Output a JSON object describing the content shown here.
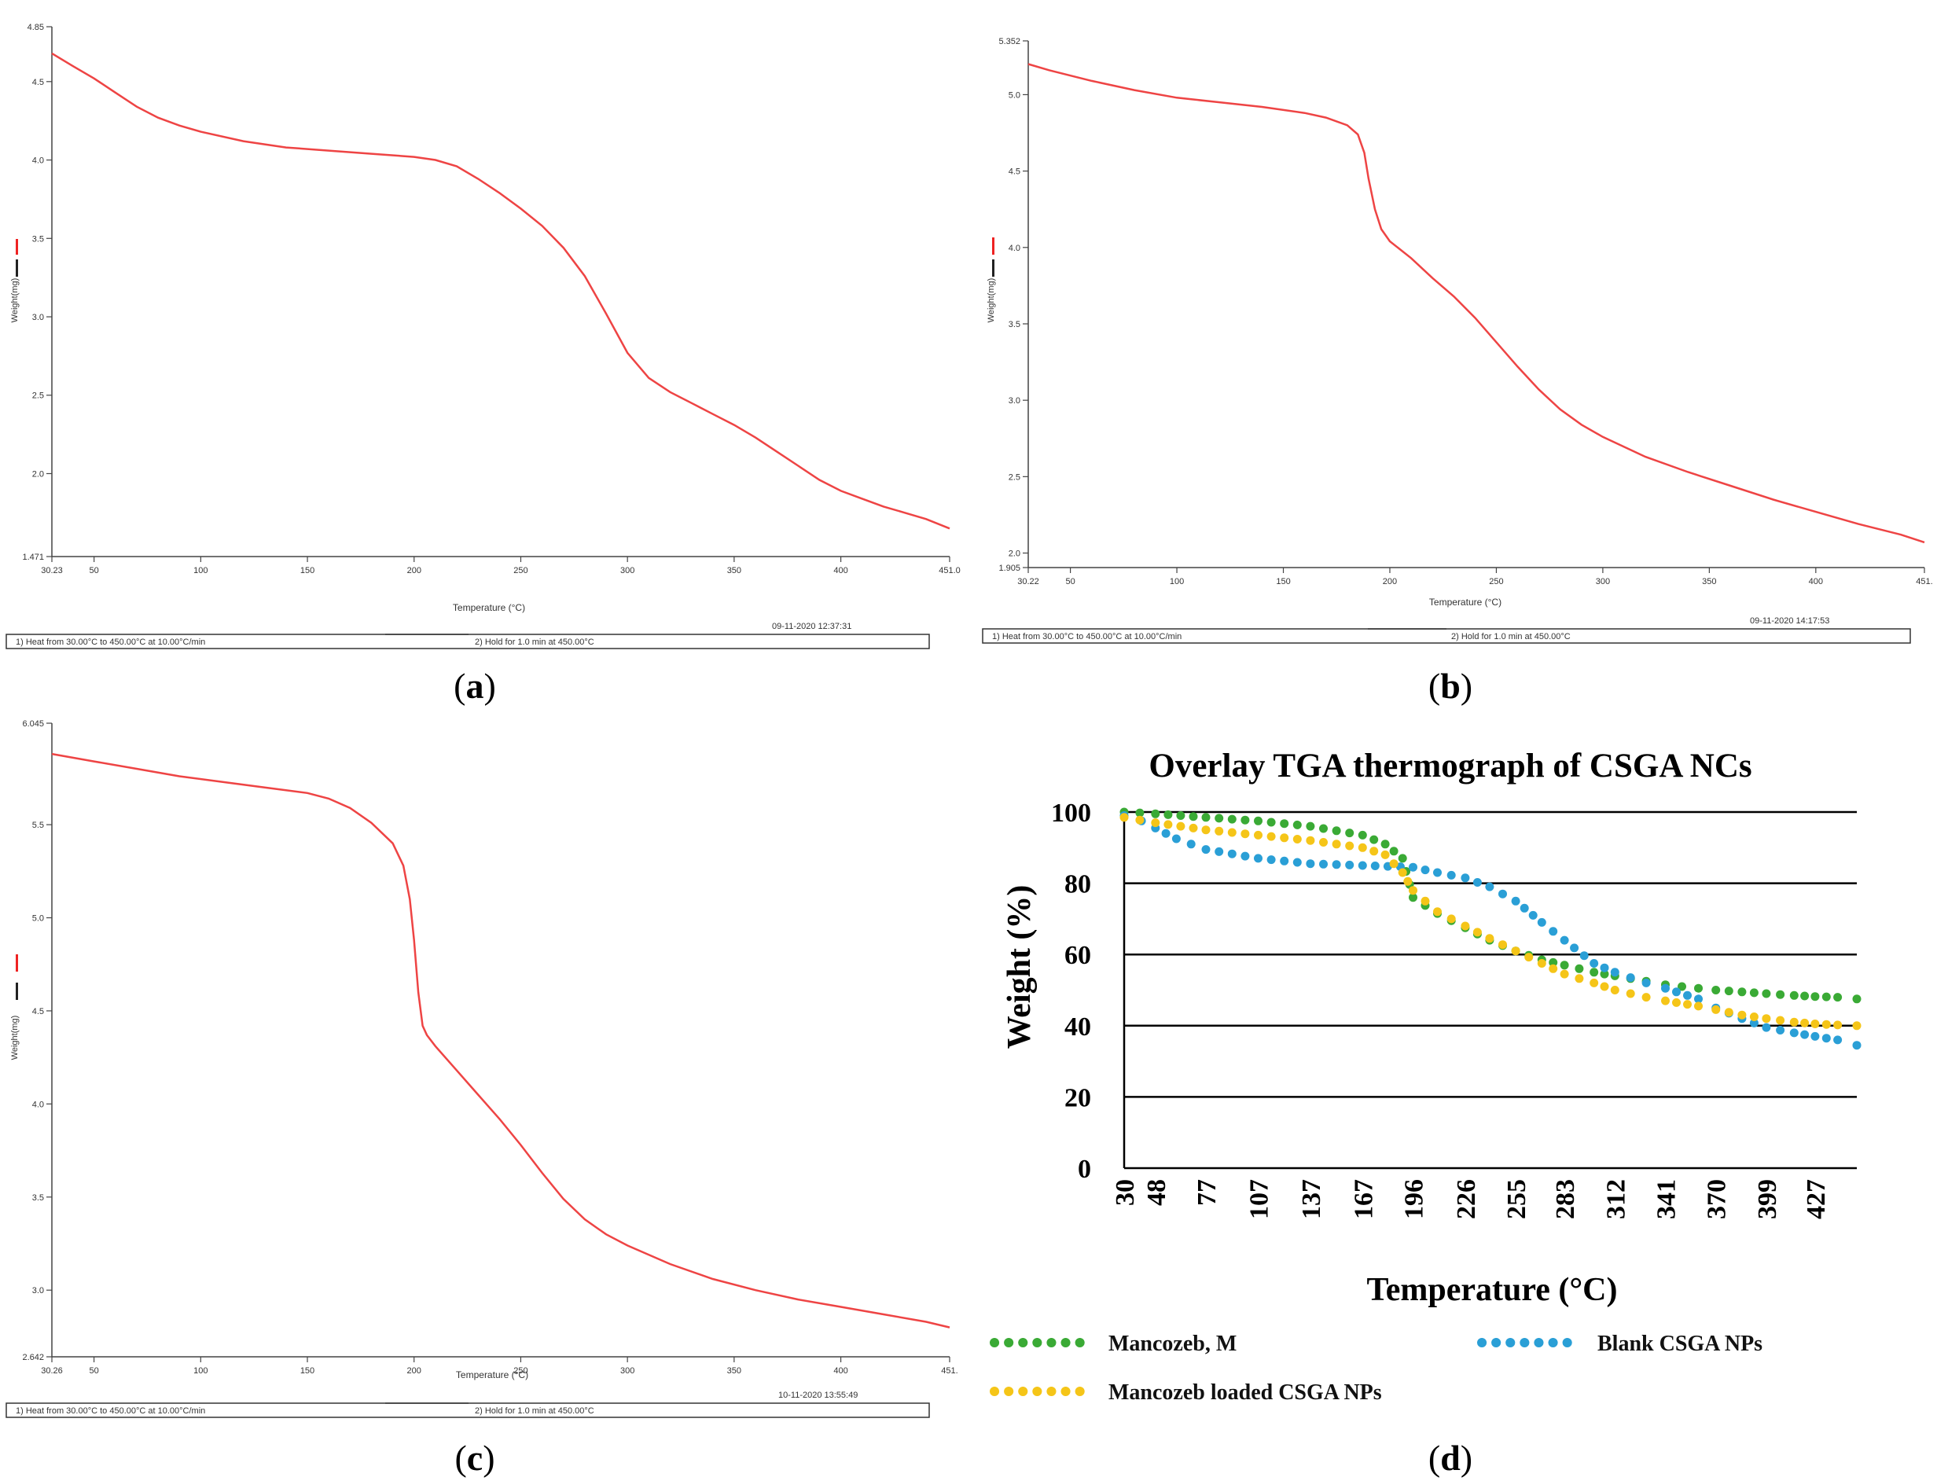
{
  "figure": {
    "captions": [
      "a",
      "b",
      "c",
      "d"
    ]
  },
  "chart_data": [
    {
      "type": "line",
      "panel": "a",
      "ylabel": "Weight(mg)",
      "xlabel": "Temperature (°C)",
      "xlim": [
        30.23,
        451.0
      ],
      "ylim": [
        1.471,
        4.85
      ],
      "x_ticks": [
        50,
        100,
        150,
        200,
        250,
        300,
        350,
        400
      ],
      "x_tick_labels": [
        "30.23",
        "50",
        "100",
        "150",
        "200",
        "250",
        "300",
        "350",
        "400",
        "451.0"
      ],
      "y_ticks": [
        2.0,
        2.5,
        3.0,
        3.5,
        4.0,
        4.5
      ],
      "y_tick_labels": [
        "1.471",
        "2.0",
        "2.5",
        "3.0",
        "3.5",
        "4.0",
        "4.5",
        "4.85"
      ],
      "series": [
        {
          "name": "Weight",
          "color": "#ee4444",
          "x": [
            30.23,
            40,
            50,
            60,
            70,
            80,
            90,
            100,
            120,
            140,
            160,
            180,
            200,
            210,
            220,
            230,
            240,
            250,
            260,
            270,
            280,
            290,
            300,
            310,
            320,
            330,
            340,
            350,
            360,
            370,
            380,
            390,
            400,
            410,
            420,
            430,
            440,
            451
          ],
          "y": [
            4.68,
            4.6,
            4.52,
            4.43,
            4.34,
            4.27,
            4.22,
            4.18,
            4.12,
            4.08,
            4.06,
            4.04,
            4.02,
            4.0,
            3.96,
            3.88,
            3.79,
            3.69,
            3.58,
            3.44,
            3.26,
            3.02,
            2.77,
            2.61,
            2.52,
            2.45,
            2.38,
            2.31,
            2.23,
            2.14,
            2.05,
            1.96,
            1.89,
            1.84,
            1.79,
            1.75,
            1.71,
            1.65
          ]
        }
      ],
      "footer": {
        "timestamp": "09-11-2020 12:37:31",
        "step1": "1)   Heat from 30.00°C to 450.00°C at 10.00°C/min",
        "step2": "2)    Hold for 1.0 min at 450.00°C"
      }
    },
    {
      "type": "line",
      "panel": "b",
      "ylabel": "Weight(mg)",
      "xlabel": "Temperature (°C)",
      "xlim": [
        30.22,
        451.0
      ],
      "ylim": [
        1.905,
        5.352
      ],
      "x_ticks": [
        50,
        100,
        150,
        200,
        250,
        300,
        350,
        400
      ],
      "x_tick_labels": [
        "30.22",
        "50",
        "100",
        "150",
        "200",
        "250",
        "300",
        "350",
        "400",
        "451."
      ],
      "y_ticks": [
        2.0,
        2.5,
        3.0,
        3.5,
        4.0,
        4.5,
        5.0
      ],
      "y_tick_labels": [
        "1.905",
        "2.0",
        "2.5",
        "3.0",
        "3.5",
        "4.0",
        "4.5",
        "5.0",
        "5.352"
      ],
      "series": [
        {
          "name": "Weight",
          "color": "#ee4444",
          "x": [
            30.22,
            40,
            60,
            80,
            100,
            120,
            140,
            160,
            170,
            180,
            185,
            188,
            190,
            193,
            196,
            200,
            210,
            220,
            230,
            240,
            250,
            260,
            270,
            280,
            290,
            300,
            320,
            340,
            360,
            380,
            400,
            420,
            440,
            451
          ],
          "y": [
            5.2,
            5.16,
            5.09,
            5.03,
            4.98,
            4.95,
            4.92,
            4.88,
            4.85,
            4.8,
            4.74,
            4.62,
            4.45,
            4.25,
            4.12,
            4.04,
            3.93,
            3.8,
            3.68,
            3.54,
            3.38,
            3.22,
            3.07,
            2.94,
            2.84,
            2.76,
            2.63,
            2.53,
            2.44,
            2.35,
            2.27,
            2.19,
            2.12,
            2.07
          ]
        }
      ],
      "footer": {
        "timestamp": "09-11-2020 14:17:53",
        "step1": "1)   Heat from 30.00°C to 450.00°C at 10.00°C/min",
        "step2": "2)    Hold for 1.0 min at 450.00°C"
      }
    },
    {
      "type": "line",
      "panel": "c",
      "ylabel": "Weight(mg)",
      "xlabel": "Temperature (°C)",
      "xlim": [
        30.26,
        451.0
      ],
      "ylim": [
        2.642,
        6.045
      ],
      "x_ticks": [
        50,
        100,
        150,
        200,
        250,
        300,
        350,
        400
      ],
      "x_tick_labels": [
        "30.26",
        "50",
        "100",
        "150",
        "200",
        "250",
        "300",
        "350",
        "400",
        "451."
      ],
      "y_ticks": [
        3.0,
        3.5,
        4.0,
        4.5,
        5.0,
        5.5
      ],
      "y_tick_labels": [
        "2.642",
        "3.0",
        "3.5",
        "4.0",
        "4.5",
        "5.0",
        "5.5",
        "6.045"
      ],
      "series": [
        {
          "name": "Weight",
          "color": "#ee4444",
          "x": [
            30.26,
            50,
            70,
            90,
            110,
            130,
            150,
            160,
            170,
            180,
            190,
            195,
            198,
            200,
            202,
            204,
            206,
            210,
            220,
            230,
            240,
            250,
            260,
            270,
            280,
            290,
            300,
            320,
            340,
            360,
            380,
            400,
            420,
            440,
            451
          ],
          "y": [
            5.88,
            5.84,
            5.8,
            5.76,
            5.73,
            5.7,
            5.67,
            5.64,
            5.59,
            5.51,
            5.4,
            5.28,
            5.1,
            4.88,
            4.6,
            4.42,
            4.37,
            4.31,
            4.18,
            4.05,
            3.92,
            3.78,
            3.63,
            3.49,
            3.38,
            3.3,
            3.24,
            3.14,
            3.06,
            3.0,
            2.95,
            2.91,
            2.87,
            2.83,
            2.8
          ]
        }
      ],
      "footer": {
        "timestamp": "10-11-2020 13:55:49",
        "step1": "1)   Heat from 30.00°C to 450.00°C at 10.00°C/min",
        "step2": "2)    Hold for 1.0 min at 450.00°C"
      }
    },
    {
      "type": "line",
      "panel": "d",
      "title": "Overlay TGA thermograph of CSGA NCs",
      "xlabel": "Temperature (°C)",
      "ylabel": "Weight (%)",
      "categories": [
        "30",
        "48",
        "77",
        "107",
        "137",
        "167",
        "196",
        "226",
        "255",
        "283",
        "312",
        "341",
        "370",
        "399",
        "427"
      ],
      "xlim": [
        30,
        451
      ],
      "ylim": [
        0,
        100
      ],
      "y_ticks": [
        0,
        20,
        40,
        60,
        80,
        100
      ],
      "grid": true,
      "legend_position": "bottom",
      "series": [
        {
          "name": "Mancozeb, M",
          "color": "#3aaa35",
          "x": [
            30,
            48,
            77,
            107,
            137,
            167,
            180,
            190,
            196,
            210,
            226,
            240,
            255,
            270,
            283,
            300,
            312,
            330,
            341,
            360,
            370,
            385,
            399,
            415,
            427,
            440,
            451
          ],
          "y": [
            100,
            99.5,
            98.5,
            97.5,
            96,
            93.5,
            91,
            87,
            76,
            71.5,
            67.5,
            64,
            61,
            58.5,
            57,
            55,
            54,
            52.5,
            51.5,
            50.5,
            50,
            49.5,
            49,
            48.5,
            48.2,
            48,
            47.5
          ]
        },
        {
          "name": "Blank CSGA NPs",
          "color": "#2a9fd6",
          "x": [
            30,
            40,
            48,
            60,
            77,
            107,
            137,
            167,
            196,
            210,
            226,
            240,
            255,
            270,
            283,
            300,
            312,
            330,
            341,
            360,
            370,
            385,
            399,
            415,
            427,
            440,
            451
          ],
          "y": [
            99,
            97.5,
            95.5,
            92.5,
            89.5,
            87,
            85.5,
            85,
            84.5,
            83,
            81.5,
            79,
            75,
            69,
            64,
            57.5,
            55,
            52,
            50.5,
            47.5,
            45,
            42,
            39.5,
            38,
            37,
            36,
            34.5
          ]
        },
        {
          "name": "Mancozeb loaded CSGA NPs",
          "color": "#f5c518",
          "x": [
            30,
            48,
            77,
            107,
            137,
            167,
            180,
            190,
            196,
            210,
            226,
            240,
            255,
            270,
            283,
            300,
            312,
            330,
            341,
            360,
            370,
            385,
            399,
            415,
            427,
            440,
            451
          ],
          "y": [
            98.5,
            97,
            95,
            93.5,
            92,
            90,
            88,
            83,
            78,
            72,
            68,
            64.5,
            61,
            57.5,
            54.5,
            52,
            50,
            48,
            47,
            45.5,
            44.5,
            43,
            42,
            41,
            40.5,
            40.2,
            40
          ]
        }
      ]
    }
  ]
}
